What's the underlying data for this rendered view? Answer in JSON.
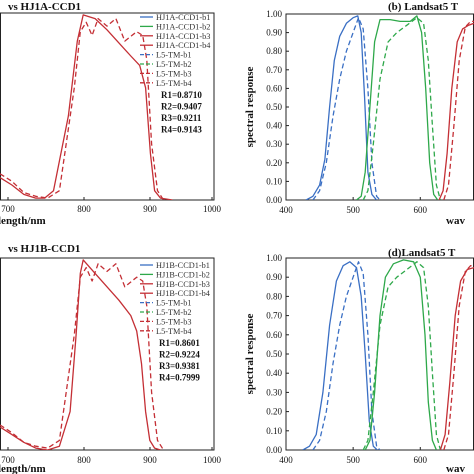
{
  "colors": {
    "blue": "#3a6fc4",
    "green": "#2ea84a",
    "red": "#c42f35",
    "frame": "#222222"
  },
  "chart_data": [
    {
      "panel": "top-left",
      "type": "line",
      "title": "vs HJ1A-CCD1",
      "xlabel": "length/nm",
      "ylabel": "",
      "xlim": [
        640,
        1000
      ],
      "ylim": [
        0,
        1
      ],
      "x_ticks": [
        "700",
        "800",
        "900",
        "1000"
      ],
      "legend_position": "top-right",
      "grid": false,
      "legend": [
        "HJ1A-CCD1-b1",
        "HJ1A-CCD1-b2",
        "HJ1A-CCD1-b3",
        "HJ1A-CCD1-b4",
        "L5-TM-b1",
        "L5-TM-b2",
        "L5-TM-b3",
        "L5-TM-b4"
      ],
      "stats": [
        "R1=0.8710",
        "R2=0.9407",
        "R3=0.9211",
        "R4=0.9143"
      ],
      "series": [
        {
          "name": "HJ1A-CCD1-b4",
          "color": "red",
          "dash": false,
          "points": [
            [
              640,
              0.12
            ],
            [
              660,
              0.08
            ],
            [
              680,
              0.03
            ],
            [
              700,
              0.01
            ],
            [
              715,
              0.01
            ],
            [
              730,
              0.05
            ],
            [
              755,
              0.45
            ],
            [
              770,
              0.85
            ],
            [
              780,
              0.99
            ],
            [
              800,
              0.97
            ],
            [
              820,
              0.91
            ],
            [
              840,
              0.84
            ],
            [
              860,
              0.77
            ],
            [
              875,
              0.72
            ],
            [
              885,
              0.6
            ],
            [
              893,
              0.25
            ],
            [
              900,
              0.05
            ],
            [
              910,
              0.01
            ],
            [
              930,
              0.0
            ]
          ]
        },
        {
          "name": "L5-TM-b4",
          "color": "red",
          "dash": true,
          "points": [
            [
              640,
              0.14
            ],
            [
              660,
              0.1
            ],
            [
              680,
              0.04
            ],
            [
              700,
              0.02
            ],
            [
              720,
              0.01
            ],
            [
              740,
              0.05
            ],
            [
              765,
              0.6
            ],
            [
              775,
              0.9
            ],
            [
              785,
              0.95
            ],
            [
              795,
              0.88
            ],
            [
              805,
              0.97
            ],
            [
              820,
              0.93
            ],
            [
              835,
              0.97
            ],
            [
              850,
              0.85
            ],
            [
              870,
              0.9
            ],
            [
              880,
              0.88
            ],
            [
              887,
              0.75
            ],
            [
              895,
              0.3
            ],
            [
              905,
              0.05
            ],
            [
              915,
              0.0
            ]
          ]
        }
      ]
    },
    {
      "panel": "top-right",
      "type": "line",
      "title": "(b) Landsat5 T",
      "xlabel": "wav",
      "ylabel": "spectral response",
      "xlim": [
        400,
        680
      ],
      "ylim": [
        0,
        1
      ],
      "x_ticks": [
        "400",
        "500",
        "600"
      ],
      "y_ticks": [
        "0.00",
        "0.10",
        "0.20",
        "0.30",
        "0.40",
        "0.50",
        "0.60",
        "0.70",
        "0.80",
        "0.90",
        "1.00"
      ],
      "grid": false,
      "series": [
        {
          "name": "HJ1A-CCD1-b1",
          "color": "blue",
          "dash": false,
          "points": [
            [
              430,
              0.0
            ],
            [
              440,
              0.02
            ],
            [
              450,
              0.08
            ],
            [
              458,
              0.22
            ],
            [
              465,
              0.5
            ],
            [
              472,
              0.75
            ],
            [
              480,
              0.88
            ],
            [
              490,
              0.95
            ],
            [
              500,
              0.98
            ],
            [
              507,
              0.99
            ],
            [
              512,
              0.9
            ],
            [
              517,
              0.55
            ],
            [
              522,
              0.15
            ],
            [
              528,
              0.03
            ],
            [
              535,
              0.0
            ]
          ]
        },
        {
          "name": "L5-TM-b1",
          "color": "blue",
          "dash": true,
          "points": [
            [
              440,
              0.0
            ],
            [
              450,
              0.05
            ],
            [
              460,
              0.2
            ],
            [
              470,
              0.45
            ],
            [
              480,
              0.65
            ],
            [
              490,
              0.8
            ],
            [
              500,
              0.9
            ],
            [
              508,
              0.98
            ],
            [
              515,
              0.92
            ],
            [
              522,
              0.6
            ],
            [
              528,
              0.2
            ],
            [
              535,
              0.02
            ],
            [
              540,
              0.0
            ]
          ]
        },
        {
          "name": "HJ1A-CCD1-b2",
          "color": "green",
          "dash": false,
          "points": [
            [
              505,
              0.0
            ],
            [
              512,
              0.02
            ],
            [
              518,
              0.15
            ],
            [
              525,
              0.5
            ],
            [
              532,
              0.85
            ],
            [
              540,
              0.97
            ],
            [
              555,
              0.97
            ],
            [
              570,
              0.96
            ],
            [
              585,
              0.96
            ],
            [
              595,
              0.99
            ],
            [
              602,
              0.9
            ],
            [
              608,
              0.6
            ],
            [
              614,
              0.2
            ],
            [
              620,
              0.03
            ],
            [
              626,
              0.0
            ]
          ]
        },
        {
          "name": "L5-TM-b2",
          "color": "green",
          "dash": true,
          "points": [
            [
              515,
              0.0
            ],
            [
              522,
              0.05
            ],
            [
              530,
              0.3
            ],
            [
              540,
              0.65
            ],
            [
              552,
              0.85
            ],
            [
              565,
              0.9
            ],
            [
              580,
              0.94
            ],
            [
              595,
              0.98
            ],
            [
              605,
              0.95
            ],
            [
              612,
              0.75
            ],
            [
              618,
              0.4
            ],
            [
              624,
              0.08
            ],
            [
              630,
              0.0
            ]
          ]
        },
        {
          "name": "HJ1A-CCD1-b3",
          "color": "red",
          "dash": false,
          "points": [
            [
              628,
              0.0
            ],
            [
              634,
              0.05
            ],
            [
              640,
              0.25
            ],
            [
              647,
              0.6
            ],
            [
              655,
              0.85
            ],
            [
              663,
              0.92
            ],
            [
              672,
              0.94
            ],
            [
              680,
              0.95
            ]
          ]
        },
        {
          "name": "L5-TM-b3",
          "color": "red",
          "dash": true,
          "points": [
            [
              635,
              0.0
            ],
            [
              642,
              0.08
            ],
            [
              650,
              0.4
            ],
            [
              658,
              0.75
            ],
            [
              667,
              0.93
            ],
            [
              675,
              0.96
            ],
            [
              680,
              0.96
            ]
          ]
        }
      ]
    },
    {
      "panel": "bottom-left",
      "type": "line",
      "title": "vs HJ1B-CCD1",
      "xlabel": "length/nm",
      "ylabel": "",
      "xlim": [
        640,
        1000
      ],
      "ylim": [
        0,
        1
      ],
      "x_ticks": [
        "700",
        "800",
        "900",
        "1000"
      ],
      "legend_position": "top-right",
      "grid": false,
      "legend": [
        "HJ1B-CCD1-b1",
        "HJ1B-CCD1-b2",
        "HJ1B-CCD1-b3",
        "HJ1B-CCD1-b4",
        "L5-TM-b1",
        "L5-TM-b2",
        "L5-TM-b3",
        "L5-TM-b4"
      ],
      "stats": [
        "R1=0.8601",
        "R2=0.9224",
        "R3=0.9381",
        "R4=0.7999"
      ],
      "series": [
        {
          "name": "HJ1B-CCD1-b4",
          "color": "red",
          "dash": false,
          "points": [
            [
              640,
              0.12
            ],
            [
              660,
              0.08
            ],
            [
              680,
              0.04
            ],
            [
              700,
              0.01
            ],
            [
              720,
              0.0
            ],
            [
              740,
              0.02
            ],
            [
              758,
              0.2
            ],
            [
              768,
              0.6
            ],
            [
              775,
              0.92
            ],
            [
              780,
              0.99
            ],
            [
              800,
              0.92
            ],
            [
              820,
              0.85
            ],
            [
              840,
              0.78
            ],
            [
              860,
              0.7
            ],
            [
              870,
              0.62
            ],
            [
              878,
              0.45
            ],
            [
              885,
              0.2
            ],
            [
              892,
              0.05
            ],
            [
              900,
              0.01
            ],
            [
              910,
              0.0
            ]
          ]
        },
        {
          "name": "L5-TM-b4",
          "color": "red",
          "dash": true,
          "points": [
            [
              640,
              0.13
            ],
            [
              660,
              0.09
            ],
            [
              680,
              0.04
            ],
            [
              700,
              0.02
            ],
            [
              720,
              0.01
            ],
            [
              740,
              0.05
            ],
            [
              765,
              0.6
            ],
            [
              775,
              0.9
            ],
            [
              785,
              0.95
            ],
            [
              795,
              0.88
            ],
            [
              805,
              0.97
            ],
            [
              820,
              0.93
            ],
            [
              835,
              0.97
            ],
            [
              850,
              0.85
            ],
            [
              870,
              0.9
            ],
            [
              880,
              0.88
            ],
            [
              887,
              0.75
            ],
            [
              895,
              0.3
            ],
            [
              905,
              0.05
            ],
            [
              915,
              0.0
            ]
          ]
        }
      ]
    },
    {
      "panel": "bottom-right",
      "type": "line",
      "title": "(d)Landsat5 T",
      "xlabel": "wav",
      "ylabel": "spectral response",
      "xlim": [
        400,
        680
      ],
      "ylim": [
        0,
        1
      ],
      "x_ticks": [
        "400",
        "500",
        "600"
      ],
      "y_ticks": [
        "0.00",
        "0.10",
        "0.20",
        "0.30",
        "0.40",
        "0.50",
        "0.60",
        "0.70",
        "0.80",
        "0.90",
        "1.00"
      ],
      "grid": false,
      "series": [
        {
          "name": "HJ1B-CCD1-b1",
          "color": "blue",
          "dash": false,
          "points": [
            [
              425,
              0.0
            ],
            [
              435,
              0.02
            ],
            [
              445,
              0.08
            ],
            [
              455,
              0.3
            ],
            [
              465,
              0.65
            ],
            [
              475,
              0.88
            ],
            [
              485,
              0.96
            ],
            [
              495,
              0.98
            ],
            [
              505,
              0.95
            ],
            [
              512,
              0.8
            ],
            [
              518,
              0.5
            ],
            [
              524,
              0.15
            ],
            [
              530,
              0.02
            ],
            [
              536,
              0.0
            ]
          ]
        },
        {
          "name": "L5-TM-b1",
          "color": "blue",
          "dash": true,
          "points": [
            [
              440,
              0.0
            ],
            [
              450,
              0.05
            ],
            [
              460,
              0.2
            ],
            [
              470,
              0.45
            ],
            [
              480,
              0.65
            ],
            [
              490,
              0.8
            ],
            [
              500,
              0.9
            ],
            [
              508,
              0.98
            ],
            [
              515,
              0.92
            ],
            [
              522,
              0.6
            ],
            [
              528,
              0.2
            ],
            [
              535,
              0.02
            ],
            [
              540,
              0.0
            ]
          ]
        },
        {
          "name": "HJ1B-CCD1-b2",
          "color": "green",
          "dash": false,
          "points": [
            [
              518,
              0.0
            ],
            [
              525,
              0.05
            ],
            [
              532,
              0.3
            ],
            [
              540,
              0.7
            ],
            [
              548,
              0.9
            ],
            [
              560,
              0.97
            ],
            [
              575,
              0.99
            ],
            [
              590,
              0.98
            ],
            [
              600,
              0.9
            ],
            [
              607,
              0.6
            ],
            [
              612,
              0.25
            ],
            [
              618,
              0.05
            ],
            [
              624,
              0.0
            ]
          ]
        },
        {
          "name": "L5-TM-b2",
          "color": "green",
          "dash": true,
          "points": [
            [
              515,
              0.0
            ],
            [
              522,
              0.05
            ],
            [
              530,
              0.3
            ],
            [
              540,
              0.65
            ],
            [
              552,
              0.85
            ],
            [
              565,
              0.9
            ],
            [
              580,
              0.94
            ],
            [
              595,
              0.98
            ],
            [
              605,
              0.95
            ],
            [
              612,
              0.75
            ],
            [
              618,
              0.4
            ],
            [
              624,
              0.08
            ],
            [
              630,
              0.0
            ]
          ]
        },
        {
          "name": "HJ1B-CCD1-b3",
          "color": "red",
          "dash": false,
          "points": [
            [
              630,
              0.0
            ],
            [
              637,
              0.08
            ],
            [
              644,
              0.35
            ],
            [
              652,
              0.7
            ],
            [
              660,
              0.88
            ],
            [
              670,
              0.94
            ],
            [
              680,
              0.95
            ]
          ]
        },
        {
          "name": "L5-TM-b3",
          "color": "red",
          "dash": true,
          "points": [
            [
              635,
              0.0
            ],
            [
              642,
              0.08
            ],
            [
              650,
              0.4
            ],
            [
              658,
              0.75
            ],
            [
              667,
              0.93
            ],
            [
              675,
              0.96
            ],
            [
              680,
              0.96
            ]
          ]
        }
      ]
    }
  ]
}
